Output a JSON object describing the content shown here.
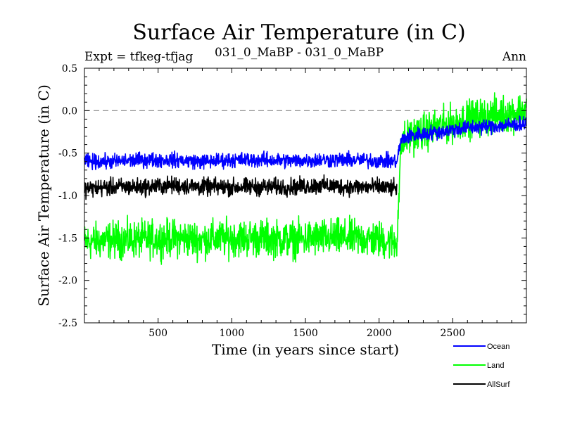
{
  "header": {
    "title": "Surface Air Temperature (in C)",
    "expt": "Expt = tfkeg-tfjag",
    "subtitle": "031_0_MaBP - 031_0_MaBP",
    "season": "Ann"
  },
  "chart_data": {
    "type": "line",
    "title": "Surface Air Temperature (in C)",
    "xlabel": "Time (in years since start)",
    "ylabel": "Surface Air Temperature (in C)",
    "xlim": [
      0,
      3000
    ],
    "ylim": [
      -2.5,
      0.5
    ],
    "x_ticks": [
      500,
      1000,
      1500,
      2000,
      2500
    ],
    "y_ticks": [
      -2.5,
      -2.0,
      -1.5,
      -1.0,
      -0.5,
      0.0,
      0.5
    ],
    "y_tick_labels": [
      "-2.5",
      "-2.0",
      "-1.5",
      "-1.0",
      "-0.5",
      "0.0",
      "0.5"
    ],
    "reference_line": {
      "y": 0.0,
      "style": "dashed",
      "color": "#808080"
    },
    "legend_position": "bottom-right, outside plot",
    "series": [
      {
        "name": "Ocean",
        "color": "#0000ff",
        "x": [
          0,
          200,
          400,
          600,
          800,
          1000,
          1200,
          1400,
          1600,
          1800,
          2000,
          2120,
          2150,
          2200,
          2400,
          2600,
          2800,
          3000
        ],
        "y": [
          -0.6,
          -0.6,
          -0.58,
          -0.58,
          -0.6,
          -0.58,
          -0.58,
          -0.59,
          -0.58,
          -0.58,
          -0.59,
          -0.6,
          -0.35,
          -0.3,
          -0.25,
          -0.2,
          -0.18,
          -0.15
        ]
      },
      {
        "name": "Land",
        "color": "#00ff00",
        "x": [
          0,
          200,
          400,
          600,
          800,
          1000,
          1200,
          1400,
          1600,
          1800,
          2000,
          2120,
          2150,
          2200,
          2400,
          2600,
          2800,
          3000
        ],
        "y": [
          -1.55,
          -1.52,
          -1.52,
          -1.5,
          -1.52,
          -1.5,
          -1.5,
          -1.52,
          -1.5,
          -1.5,
          -1.52,
          -1.55,
          -0.4,
          -0.3,
          -0.2,
          -0.1,
          -0.05,
          0.0
        ]
      },
      {
        "name": "AllSurf",
        "color": "#000000",
        "x": [
          0,
          200,
          400,
          600,
          800,
          1000,
          1200,
          1400,
          1600,
          1800,
          2000,
          2120
        ],
        "y": [
          -0.92,
          -0.9,
          -0.9,
          -0.88,
          -0.9,
          -0.9,
          -0.9,
          -0.9,
          -0.88,
          -0.9,
          -0.9,
          -0.92
        ]
      }
    ]
  }
}
